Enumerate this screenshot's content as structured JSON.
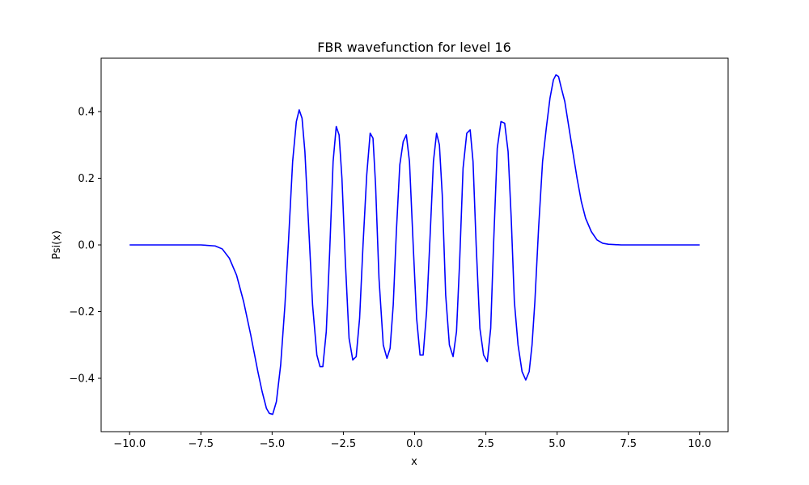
{
  "chart_data": {
    "type": "line",
    "title": "FBR wavefunction for level 16",
    "xlabel": "x",
    "ylabel": "Psi(x)",
    "xlim": [
      -11.0,
      11.0
    ],
    "ylim": [
      -0.56,
      0.56
    ],
    "xticks": [
      -10.0,
      -7.5,
      -5.0,
      -2.5,
      0.0,
      2.5,
      5.0,
      7.5,
      10.0
    ],
    "xtick_labels": [
      "−10.0",
      "−7.5",
      "−5.0",
      "−2.5",
      "0.0",
      "2.5",
      "5.0",
      "7.5",
      "10.0"
    ],
    "yticks": [
      -0.4,
      -0.2,
      0.0,
      0.2,
      0.4
    ],
    "ytick_labels": [
      "−0.4",
      "−0.2",
      "0.0",
      "0.2",
      "0.4"
    ],
    "grid": false,
    "legend": "none",
    "series": [
      {
        "color": "#0000ff",
        "x": [
          -10.0,
          -7.5,
          -7.0,
          -6.75,
          -6.5,
          -6.25,
          -6.0,
          -5.75,
          -5.5,
          -5.35,
          -5.2,
          -5.1,
          -4.98,
          -4.85,
          -4.7,
          -4.55,
          -4.42,
          -4.28,
          -4.15,
          -4.05,
          -3.95,
          -3.85,
          -3.72,
          -3.58,
          -3.43,
          -3.32,
          -3.22,
          -3.1,
          -2.98,
          -2.86,
          -2.75,
          -2.65,
          -2.55,
          -2.43,
          -2.3,
          -2.17,
          -2.05,
          -1.93,
          -1.81,
          -1.68,
          -1.56,
          -1.46,
          -1.37,
          -1.25,
          -1.1,
          -0.97,
          -0.86,
          -0.75,
          -0.64,
          -0.52,
          -0.4,
          -0.29,
          -0.18,
          -0.05,
          0.07,
          0.19,
          0.3,
          0.42,
          0.54,
          0.66,
          0.77,
          0.87,
          0.97,
          1.09,
          1.22,
          1.35,
          1.47,
          1.58,
          1.7,
          1.83,
          1.95,
          2.05,
          2.16,
          2.29,
          2.42,
          2.55,
          2.67,
          2.77,
          2.9,
          3.03,
          3.16,
          3.28,
          3.39,
          3.5,
          3.63,
          3.77,
          3.9,
          4.02,
          4.12,
          4.22,
          4.35,
          4.49,
          4.62,
          4.75,
          4.87,
          4.96,
          5.05,
          5.15,
          5.27,
          5.4,
          5.55,
          5.7,
          5.85,
          6.0,
          6.2,
          6.4,
          6.6,
          6.8,
          7.0,
          7.25,
          7.5,
          8.0,
          10.0
        ],
        "y": [
          0.0,
          0.0,
          -0.003,
          -0.012,
          -0.04,
          -0.09,
          -0.17,
          -0.27,
          -0.38,
          -0.44,
          -0.49,
          -0.505,
          -0.508,
          -0.47,
          -0.36,
          -0.18,
          0.02,
          0.25,
          0.37,
          0.405,
          0.38,
          0.28,
          0.06,
          -0.18,
          -0.33,
          -0.365,
          -0.365,
          -0.26,
          -0.02,
          0.25,
          0.355,
          0.33,
          0.2,
          -0.05,
          -0.28,
          -0.345,
          -0.335,
          -0.22,
          0.0,
          0.21,
          0.335,
          0.32,
          0.18,
          -0.1,
          -0.3,
          -0.34,
          -0.31,
          -0.18,
          0.04,
          0.24,
          0.31,
          0.33,
          0.25,
          0.0,
          -0.22,
          -0.33,
          -0.33,
          -0.2,
          0.02,
          0.25,
          0.335,
          0.3,
          0.15,
          -0.15,
          -0.3,
          -0.335,
          -0.26,
          -0.05,
          0.23,
          0.335,
          0.345,
          0.25,
          0.0,
          -0.25,
          -0.33,
          -0.35,
          -0.25,
          0.0,
          0.29,
          0.37,
          0.365,
          0.28,
          0.08,
          -0.17,
          -0.3,
          -0.38,
          -0.405,
          -0.38,
          -0.3,
          -0.17,
          0.05,
          0.25,
          0.35,
          0.44,
          0.495,
          0.51,
          0.505,
          0.47,
          0.43,
          0.36,
          0.28,
          0.2,
          0.13,
          0.08,
          0.04,
          0.015,
          0.005,
          0.002,
          0.001,
          0.0,
          0.0,
          0.0,
          0.0
        ]
      }
    ]
  }
}
